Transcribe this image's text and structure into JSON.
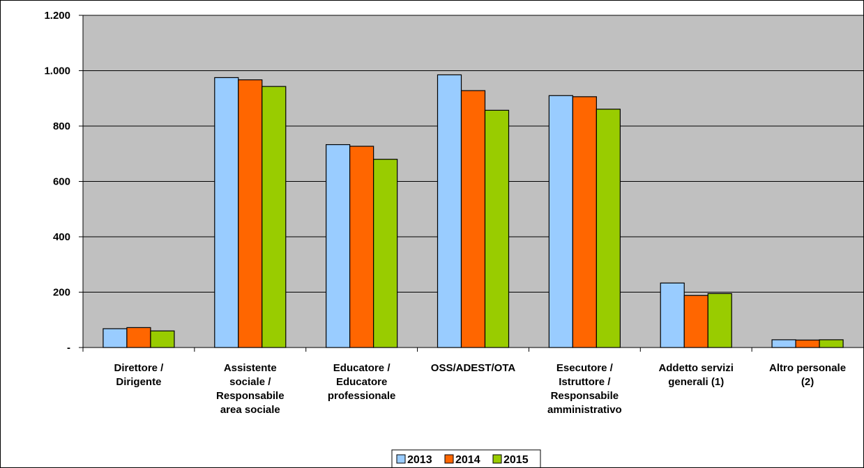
{
  "chart_data": {
    "type": "bar",
    "categories": [
      [
        "Direttore /",
        "Dirigente"
      ],
      [
        "Assistente",
        "sociale /",
        "Responsabile",
        "area sociale"
      ],
      [
        "Educatore /",
        "Educatore",
        "professionale"
      ],
      [
        "OSS/ADEST/OTA"
      ],
      [
        "Esecutore /",
        "Istruttore /",
        "Responsabile",
        "amministrativo"
      ],
      [
        "Addetto servizi",
        "generali (1)"
      ],
      [
        "Altro personale",
        "(2)"
      ]
    ],
    "series": [
      {
        "name": "2013",
        "color": "#99ccff",
        "values": [
          68,
          975,
          733,
          985,
          910,
          233,
          28
        ]
      },
      {
        "name": "2014",
        "color": "#ff6600",
        "values": [
          72,
          967,
          727,
          928,
          906,
          188,
          27
        ]
      },
      {
        "name": "2015",
        "color": "#99cc00",
        "values": [
          60,
          943,
          680,
          857,
          861,
          195,
          28
        ]
      }
    ],
    "yticks": [
      "-",
      "200",
      "400",
      "600",
      "800",
      "1.000",
      "1.200"
    ],
    "ylim": [
      0,
      1200
    ],
    "grid": true,
    "plot_background": "#c0c0c0",
    "legend_position": "bottom-center"
  }
}
